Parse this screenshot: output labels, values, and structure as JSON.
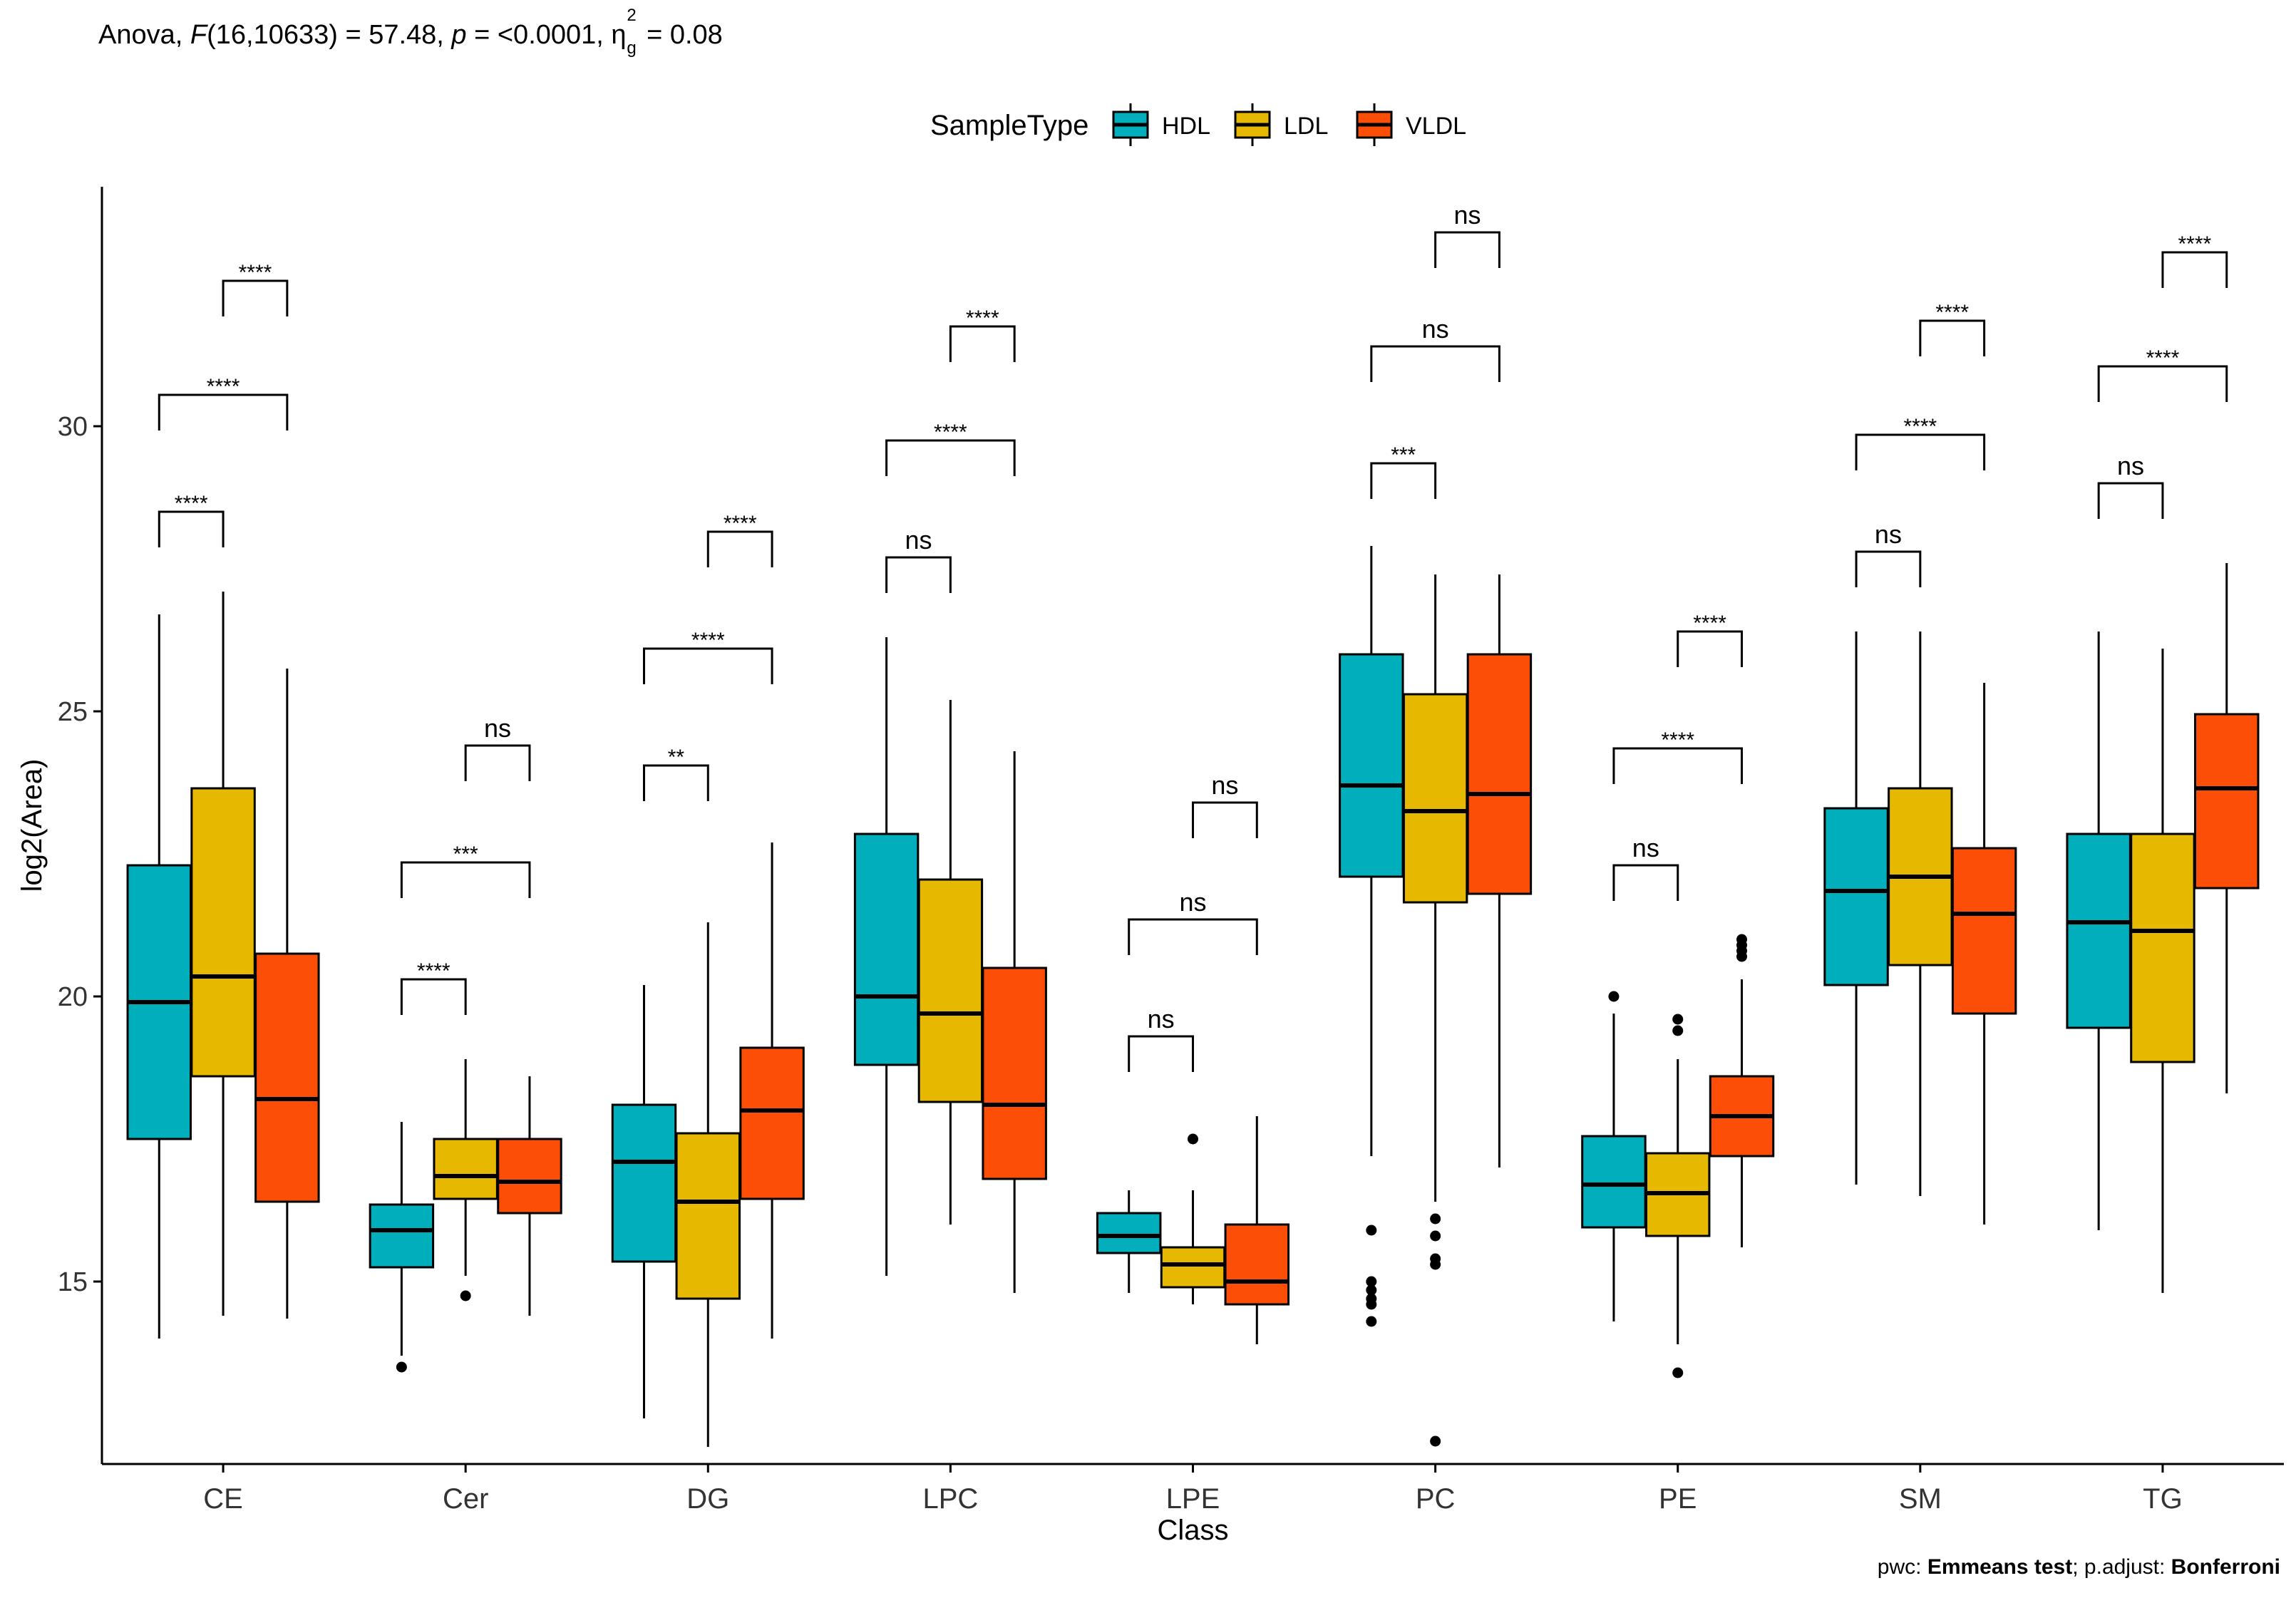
{
  "subtitle": {
    "prefix": "Anova, ",
    "stat_name": "F",
    "df": "(16,10633) = 57.48, ",
    "p_name": "p",
    "p_value": " = <0.0001, ",
    "eta": "η",
    "eta_sup": "2",
    "eta_sub": "g",
    "eta_value": " = 0.08"
  },
  "caption": {
    "pwc_label": "pwc: ",
    "pwc_value": "Emmeans test",
    "sep": "; p.adjust: ",
    "adjust_value": "Bonferroni"
  },
  "chart_data": {
    "type": "boxplot",
    "xlabel": "Class",
    "ylabel": "log2(Area)",
    "ylim": [
      11.8,
      34.2
    ],
    "yticks": [
      15,
      20,
      25,
      30
    ],
    "legend": {
      "title": "SampleType",
      "position": "top",
      "items": [
        {
          "name": "HDL",
          "color": "#00AFBB"
        },
        {
          "name": "LDL",
          "color": "#E7B800"
        },
        {
          "name": "VLDL",
          "color": "#FC4E07"
        }
      ]
    },
    "categories": [
      "CE",
      "Cer",
      "DG",
      "LPC",
      "LPE",
      "PC",
      "PE",
      "SM",
      "TG"
    ],
    "series": [
      {
        "name": "HDL",
        "color": "#00AFBB",
        "boxes": [
          {
            "whislo": 14.0,
            "q1": 17.5,
            "med": 19.9,
            "q3": 22.3,
            "whishi": 26.7,
            "fliers": []
          },
          {
            "whislo": 13.7,
            "q1": 15.25,
            "med": 15.9,
            "q3": 16.35,
            "whishi": 17.8,
            "fliers": [
              13.5
            ]
          },
          {
            "whislo": 12.6,
            "q1": 15.35,
            "med": 17.1,
            "q3": 18.1,
            "whishi": 20.2,
            "fliers": []
          },
          {
            "whislo": 15.1,
            "q1": 18.8,
            "med": 20.0,
            "q3": 22.85,
            "whishi": 26.3,
            "fliers": []
          },
          {
            "whislo": 14.8,
            "q1": 15.5,
            "med": 15.8,
            "q3": 16.2,
            "whishi": 16.6,
            "fliers": []
          },
          {
            "whislo": 17.2,
            "q1": 22.1,
            "med": 23.7,
            "q3": 26.0,
            "whishi": 27.9,
            "fliers": [
              15.9,
              15.0,
              14.85,
              14.7,
              14.6,
              14.3
            ]
          },
          {
            "whislo": 14.3,
            "q1": 15.95,
            "med": 16.7,
            "q3": 17.55,
            "whishi": 19.7,
            "fliers": [
              20.0
            ]
          },
          {
            "whislo": 16.7,
            "q1": 20.2,
            "med": 21.85,
            "q3": 23.3,
            "whishi": 26.4,
            "fliers": []
          },
          {
            "whislo": 15.9,
            "q1": 19.45,
            "med": 21.3,
            "q3": 22.85,
            "whishi": 26.4,
            "fliers": []
          }
        ]
      },
      {
        "name": "LDL",
        "color": "#E7B800",
        "boxes": [
          {
            "whislo": 14.4,
            "q1": 18.6,
            "med": 20.35,
            "q3": 23.65,
            "whishi": 27.1,
            "fliers": []
          },
          {
            "whislo": 15.1,
            "q1": 16.45,
            "med": 16.85,
            "q3": 17.5,
            "whishi": 18.9,
            "fliers": [
              14.75
            ]
          },
          {
            "whislo": 12.1,
            "q1": 14.7,
            "med": 16.4,
            "q3": 17.6,
            "whishi": 21.3,
            "fliers": []
          },
          {
            "whislo": 16.0,
            "q1": 18.15,
            "med": 19.7,
            "q3": 22.05,
            "whishi": 25.2,
            "fliers": []
          },
          {
            "whislo": 14.6,
            "q1": 14.9,
            "med": 15.3,
            "q3": 15.6,
            "whishi": 16.6,
            "fliers": [
              17.5
            ]
          },
          {
            "whislo": 16.4,
            "q1": 21.65,
            "med": 23.25,
            "q3": 25.3,
            "whishi": 27.4,
            "fliers": [
              16.1,
              15.8,
              15.4,
              15.3,
              12.2
            ]
          },
          {
            "whislo": 13.9,
            "q1": 15.8,
            "med": 16.55,
            "q3": 17.25,
            "whishi": 18.9,
            "fliers": [
              19.6,
              19.4,
              13.4
            ]
          },
          {
            "whislo": 16.5,
            "q1": 20.55,
            "med": 22.1,
            "q3": 23.65,
            "whishi": 26.4,
            "fliers": []
          },
          {
            "whislo": 14.8,
            "q1": 18.85,
            "med": 21.15,
            "q3": 22.85,
            "whishi": 26.1,
            "fliers": []
          }
        ]
      },
      {
        "name": "VLDL",
        "color": "#FC4E07",
        "boxes": [
          {
            "whislo": 14.35,
            "q1": 16.4,
            "med": 18.2,
            "q3": 20.75,
            "whishi": 25.75,
            "fliers": []
          },
          {
            "whislo": 14.4,
            "q1": 16.2,
            "med": 16.75,
            "q3": 17.5,
            "whishi": 18.6,
            "fliers": []
          },
          {
            "whislo": 14.0,
            "q1": 16.45,
            "med": 18.0,
            "q3": 19.1,
            "whishi": 22.7,
            "fliers": []
          },
          {
            "whislo": 14.8,
            "q1": 16.8,
            "med": 18.1,
            "q3": 20.5,
            "whishi": 24.3,
            "fliers": []
          },
          {
            "whislo": 13.9,
            "q1": 14.6,
            "med": 15.0,
            "q3": 16.0,
            "whishi": 17.9,
            "fliers": []
          },
          {
            "whislo": 17.0,
            "q1": 21.8,
            "med": 23.55,
            "q3": 26.0,
            "whishi": 27.4,
            "fliers": []
          },
          {
            "whislo": 15.6,
            "q1": 17.2,
            "med": 17.9,
            "q3": 18.6,
            "whishi": 20.3,
            "fliers": [
              21.0,
              20.9,
              20.8,
              20.7
            ]
          },
          {
            "whislo": 16.0,
            "q1": 19.7,
            "med": 21.45,
            "q3": 22.6,
            "whishi": 25.5,
            "fliers": []
          },
          {
            "whislo": 18.3,
            "q1": 21.9,
            "med": 23.65,
            "q3": 24.95,
            "whishi": 27.6,
            "fliers": []
          }
        ]
      }
    ],
    "comparisons": [
      {
        "class": "CE",
        "pair": [
          "HDL",
          "LDL"
        ],
        "label": "****",
        "y": 28.5
      },
      {
        "class": "CE",
        "pair": [
          "HDL",
          "VLDL"
        ],
        "label": "****",
        "y": 30.55
      },
      {
        "class": "CE",
        "pair": [
          "LDL",
          "VLDL"
        ],
        "label": "****",
        "y": 32.55
      },
      {
        "class": "Cer",
        "pair": [
          "HDL",
          "LDL"
        ],
        "label": "****",
        "y": 20.3
      },
      {
        "class": "Cer",
        "pair": [
          "HDL",
          "VLDL"
        ],
        "label": "***",
        "y": 22.35
      },
      {
        "class": "Cer",
        "pair": [
          "LDL",
          "VLDL"
        ],
        "label": "ns",
        "y": 24.4
      },
      {
        "class": "DG",
        "pair": [
          "HDL",
          "LDL"
        ],
        "label": "**",
        "y": 24.05
      },
      {
        "class": "DG",
        "pair": [
          "HDL",
          "VLDL"
        ],
        "label": "****",
        "y": 26.1
      },
      {
        "class": "DG",
        "pair": [
          "LDL",
          "VLDL"
        ],
        "label": "****",
        "y": 28.15
      },
      {
        "class": "LPC",
        "pair": [
          "HDL",
          "LDL"
        ],
        "label": "ns",
        "y": 27.7
      },
      {
        "class": "LPC",
        "pair": [
          "HDL",
          "VLDL"
        ],
        "label": "****",
        "y": 29.75
      },
      {
        "class": "LPC",
        "pair": [
          "LDL",
          "VLDL"
        ],
        "label": "****",
        "y": 31.75
      },
      {
        "class": "LPE",
        "pair": [
          "HDL",
          "LDL"
        ],
        "label": "ns",
        "y": 19.3
      },
      {
        "class": "LPE",
        "pair": [
          "HDL",
          "VLDL"
        ],
        "label": "ns",
        "y": 21.35
      },
      {
        "class": "LPE",
        "pair": [
          "LDL",
          "VLDL"
        ],
        "label": "ns",
        "y": 23.4
      },
      {
        "class": "PC",
        "pair": [
          "HDL",
          "LDL"
        ],
        "label": "***",
        "y": 29.35
      },
      {
        "class": "PC",
        "pair": [
          "HDL",
          "VLDL"
        ],
        "label": "ns",
        "y": 31.4
      },
      {
        "class": "PC",
        "pair": [
          "LDL",
          "VLDL"
        ],
        "label": "ns",
        "y": 33.4
      },
      {
        "class": "PE",
        "pair": [
          "HDL",
          "LDL"
        ],
        "label": "ns",
        "y": 22.3
      },
      {
        "class": "PE",
        "pair": [
          "HDL",
          "VLDL"
        ],
        "label": "****",
        "y": 24.35
      },
      {
        "class": "PE",
        "pair": [
          "LDL",
          "VLDL"
        ],
        "label": "****",
        "y": 26.4
      },
      {
        "class": "SM",
        "pair": [
          "HDL",
          "LDL"
        ],
        "label": "ns",
        "y": 27.8
      },
      {
        "class": "SM",
        "pair": [
          "HDL",
          "VLDL"
        ],
        "label": "****",
        "y": 29.85
      },
      {
        "class": "SM",
        "pair": [
          "LDL",
          "VLDL"
        ],
        "label": "****",
        "y": 31.85
      },
      {
        "class": "TG",
        "pair": [
          "HDL",
          "LDL"
        ],
        "label": "ns",
        "y": 29.0
      },
      {
        "class": "TG",
        "pair": [
          "HDL",
          "VLDL"
        ],
        "label": "****",
        "y": 31.05
      },
      {
        "class": "TG",
        "pair": [
          "LDL",
          "VLDL"
        ],
        "label": "****",
        "y": 33.05
      }
    ]
  }
}
